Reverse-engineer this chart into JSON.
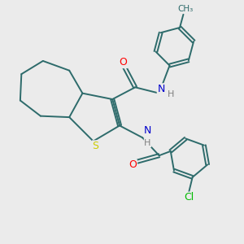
{
  "background_color": "#ebebeb",
  "bond_color": "#2d6b6b",
  "atom_colors": {
    "O": "#ff0000",
    "N": "#0000cc",
    "S": "#cccc00",
    "Cl": "#00bb00",
    "H": "#808080",
    "C": "#2d6b6b"
  },
  "figsize": [
    3.0,
    3.0
  ],
  "dpi": 100
}
